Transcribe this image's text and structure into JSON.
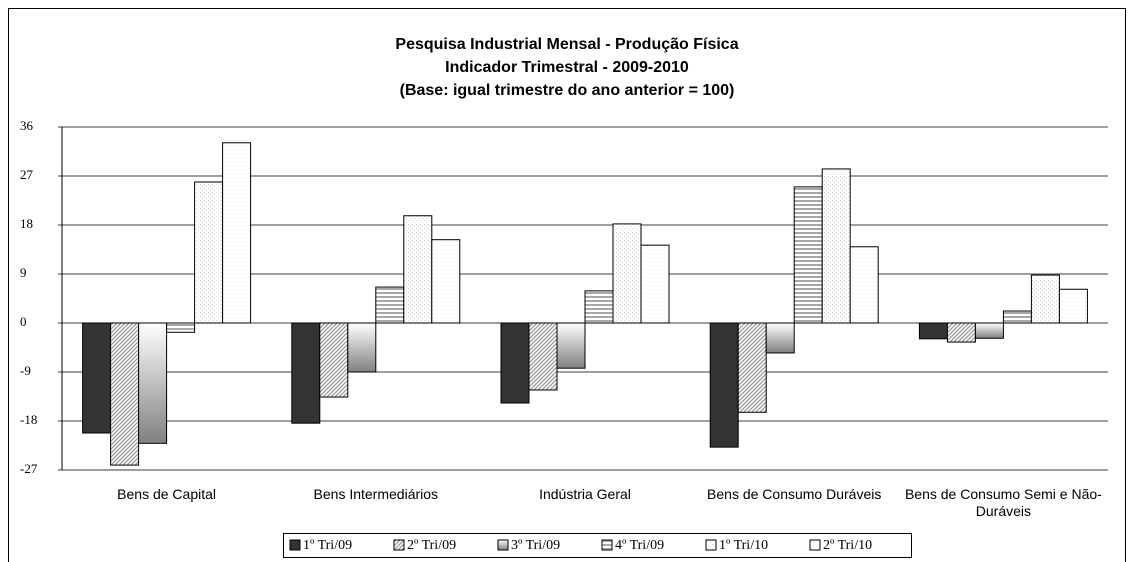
{
  "chart_data": {
    "type": "bar",
    "title": [
      "Pesquisa Industrial Mensal - Produção Física",
      "Indicador Trimestral - 2009-2010",
      "(Base: igual trimestre do ano anterior = 100)"
    ],
    "categories": [
      "Bens de Capital",
      "Bens Intermediários",
      "Indústria Geral",
      "Bens de Consumo Duráveis",
      "Bens de Consumo Semi e Não-Duráveis"
    ],
    "series": [
      {
        "name": "1º Tri/09",
        "color": "#333333",
        "values": [
          -20.2,
          -18.4,
          -14.7,
          -22.8,
          -2.9
        ]
      },
      {
        "name": "2º Tri/09",
        "color": "#9a9a9a",
        "values": [
          -26.1,
          -13.6,
          -12.3,
          -16.4,
          -3.5
        ]
      },
      {
        "name": "3º Tri/09",
        "color": "#808080",
        "values": [
          -22.1,
          -9.0,
          -8.3,
          -5.5,
          -2.8
        ]
      },
      {
        "name": "4º Tri/09",
        "color": "#a8a8a8",
        "values": [
          -1.7,
          6.6,
          5.9,
          25.0,
          2.2
        ]
      },
      {
        "name": "1º Tri/10",
        "color": "#d8d8d8",
        "values": [
          25.9,
          19.7,
          18.2,
          28.3,
          8.8
        ]
      },
      {
        "name": "2º Tri/10",
        "color": "#e6e6e6",
        "values": [
          33.1,
          15.3,
          14.3,
          14.0,
          6.2
        ]
      }
    ],
    "ylim": [
      -27,
      36
    ],
    "yticks": [
      -27,
      -18,
      -9,
      0,
      9,
      18,
      27,
      36
    ],
    "grid": true
  }
}
